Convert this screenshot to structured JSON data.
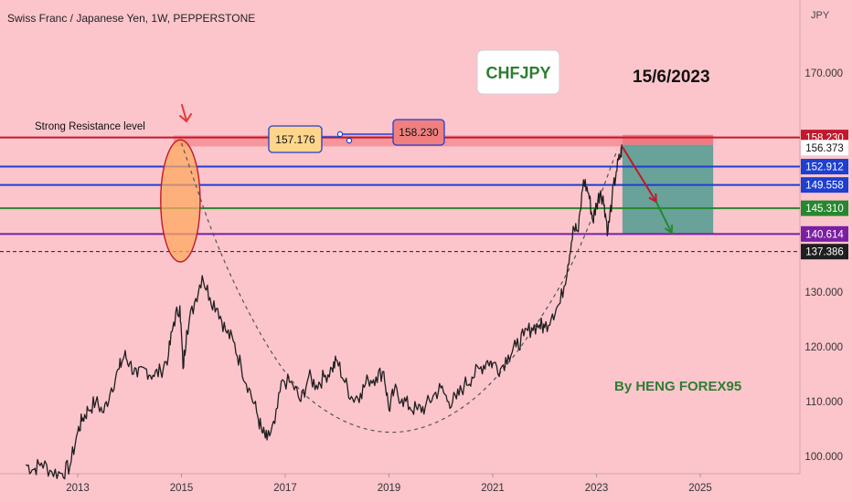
{
  "header": {
    "symbol_title": "Swiss Franc / Japanese Yen, 1W, PEPPERSTONE"
  },
  "annotations": {
    "ticker_box": "CHFJPY",
    "date": "15/6/2023",
    "author": "By HENG FOREX95",
    "resistance_label": "Strong Resistance level",
    "callout_left": "157.176",
    "callout_right": "158.230"
  },
  "colors": {
    "background": "#fcc5cc",
    "candle": "#1f1f1f",
    "resistance": "#c2182b",
    "blue_level": "#1e3fd0",
    "green_level": "#27872f",
    "purple_level": "#7b1fa2",
    "target_zone": "#4e9b8f",
    "stop_zone": "#f0707a",
    "annotation_green": "#2e7d32"
  },
  "chart_data": {
    "type": "line",
    "title": "Swiss Franc / Japanese Yen, 1W, PEPPERSTONE",
    "price_axis_unit": "JPY",
    "ylim": [
      97,
      178
    ],
    "xlim": [
      2012.0,
      2026.45
    ],
    "y_ticks": [
      100,
      110,
      120,
      130,
      170
    ],
    "y_tick_labels": [
      "100.000",
      "110.000",
      "120.000",
      "130.000",
      "170.000"
    ],
    "x_ticks": [
      2013,
      2015,
      2017,
      2019,
      2021,
      2023,
      2025
    ],
    "price_series": {
      "name": "CHFJPY",
      "points": [
        [
          2012.0,
          98.5
        ],
        [
          2012.15,
          97.6
        ],
        [
          2012.3,
          98.8
        ],
        [
          2012.5,
          97.2
        ],
        [
          2012.7,
          96.9
        ],
        [
          2012.85,
          98.2
        ],
        [
          2013.0,
          104.5
        ],
        [
          2013.1,
          107.0
        ],
        [
          2013.2,
          108.5
        ],
        [
          2013.35,
          110.0
        ],
        [
          2013.5,
          108.0
        ],
        [
          2013.65,
          112.5
        ],
        [
          2013.8,
          116.0
        ],
        [
          2013.9,
          118.5
        ],
        [
          2014.0,
          117.0
        ],
        [
          2014.15,
          114.5
        ],
        [
          2014.3,
          116.0
        ],
        [
          2014.45,
          114.8
        ],
        [
          2014.6,
          115.5
        ],
        [
          2014.75,
          118.5
        ],
        [
          2014.85,
          124.5
        ],
        [
          2014.97,
          127.5
        ],
        [
          2015.03,
          116.0
        ],
        [
          2015.1,
          123.0
        ],
        [
          2015.25,
          128.0
        ],
        [
          2015.4,
          133.0
        ],
        [
          2015.55,
          129.0
        ],
        [
          2015.7,
          127.0
        ],
        [
          2015.85,
          123.0
        ],
        [
          2016.0,
          121.0
        ],
        [
          2016.15,
          116.5
        ],
        [
          2016.3,
          112.5
        ],
        [
          2016.45,
          108.0
        ],
        [
          2016.55,
          104.5
        ],
        [
          2016.65,
          103.0
        ],
        [
          2016.8,
          106.0
        ],
        [
          2016.95,
          114.0
        ],
        [
          2017.15,
          113.0
        ],
        [
          2017.3,
          110.0
        ],
        [
          2017.45,
          114.5
        ],
        [
          2017.6,
          113.0
        ],
        [
          2017.75,
          114.5
        ],
        [
          2017.9,
          116.0
        ],
        [
          2018.0,
          117.5
        ],
        [
          2018.15,
          113.5
        ],
        [
          2018.3,
          110.5
        ],
        [
          2018.45,
          111.5
        ],
        [
          2018.6,
          114.0
        ],
        [
          2018.75,
          114.5
        ],
        [
          2018.9,
          115.5
        ],
        [
          2019.0,
          108.5
        ],
        [
          2019.1,
          112.0
        ],
        [
          2019.25,
          110.5
        ],
        [
          2019.4,
          109.0
        ],
        [
          2019.55,
          108.5
        ],
        [
          2019.7,
          109.0
        ],
        [
          2019.85,
          111.0
        ],
        [
          2020.0,
          112.5
        ],
        [
          2020.15,
          110.0
        ],
        [
          2020.3,
          110.5
        ],
        [
          2020.45,
          113.0
        ],
        [
          2020.6,
          114.5
        ],
        [
          2020.75,
          116.0
        ],
        [
          2020.9,
          117.5
        ],
        [
          2021.0,
          117.0
        ],
        [
          2021.15,
          116.0
        ],
        [
          2021.3,
          118.5
        ],
        [
          2021.45,
          120.0
        ],
        [
          2021.6,
          122.0
        ],
        [
          2021.75,
          123.5
        ],
        [
          2021.9,
          124.0
        ],
        [
          2022.0,
          123.5
        ],
        [
          2022.15,
          126.0
        ],
        [
          2022.3,
          128.0
        ],
        [
          2022.45,
          135.0
        ],
        [
          2022.55,
          142.0
        ],
        [
          2022.65,
          141.0
        ],
        [
          2022.75,
          150.5
        ],
        [
          2022.85,
          148.0
        ],
        [
          2022.93,
          143.0
        ],
        [
          2023.0,
          146.0
        ],
        [
          2023.08,
          148.5
        ],
        [
          2023.15,
          146.0
        ],
        [
          2023.22,
          141.0
        ],
        [
          2023.3,
          147.0
        ],
        [
          2023.38,
          152.0
        ],
        [
          2023.46,
          155.0
        ],
        [
          2023.5,
          156.37
        ]
      ]
    },
    "guide_curve": {
      "name": "rounding bottom",
      "style": "dashed",
      "points": [
        [
          2015.0,
          157.2
        ],
        [
          2015.8,
          135.0
        ],
        [
          2017.0,
          114.0
        ],
        [
          2018.0,
          106.5
        ],
        [
          2019.0,
          103.8
        ],
        [
          2020.0,
          106.0
        ],
        [
          2021.0,
          113.0
        ],
        [
          2022.0,
          126.0
        ],
        [
          2022.7,
          138.0
        ],
        [
          2023.4,
          156.0
        ]
      ]
    },
    "horizontal_levels": [
      {
        "value": 158.23,
        "label": "158.230",
        "role": "strong resistance",
        "color": "#c2182b",
        "style": "solid"
      },
      {
        "value": 156.373,
        "label": "156.373",
        "role": "current price",
        "color": "#ffffff",
        "style": "none"
      },
      {
        "value": 152.912,
        "label": "152.912",
        "role": "level",
        "color": "#1e3fd0",
        "style": "solid"
      },
      {
        "value": 149.558,
        "label": "149.558",
        "role": "level",
        "color": "#1e3fd0",
        "style": "solid"
      },
      {
        "value": 145.31,
        "label": "145.310",
        "role": "level",
        "color": "#27872f",
        "style": "solid"
      },
      {
        "value": 140.614,
        "label": "140.614",
        "role": "target",
        "color": "#7b1fa2",
        "style": "solid"
      },
      {
        "value": 137.386,
        "label": "137.386",
        "role": "support",
        "color": "#1f1f1f",
        "style": "dashed"
      }
    ],
    "resistance_band": [
      156.6,
      158.6
    ],
    "resistance_band_start": 2014.85,
    "highlight_ellipse": {
      "x_center": 2014.98,
      "y_top": 157.8,
      "y_bottom": 135.5,
      "x_half_width": 0.38
    },
    "short_position": {
      "x_start": 2023.5,
      "x_end": 2025.25,
      "entry": 156.9,
      "stop": 158.7,
      "target": 140.6
    },
    "projection_arrows": [
      {
        "from": [
          2023.5,
          156.5
        ],
        "to": [
          2024.15,
          146.5
        ],
        "color": "#c2182b"
      },
      {
        "from": [
          2024.15,
          146.5
        ],
        "to": [
          2024.45,
          140.8
        ],
        "color": "#27872f"
      }
    ]
  }
}
